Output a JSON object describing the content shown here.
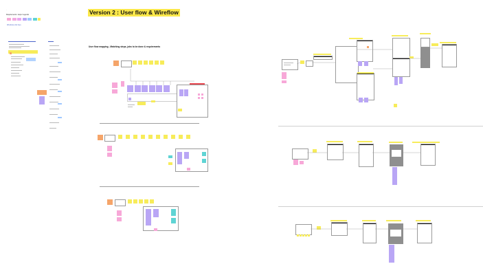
{
  "page_title": "Version 2 : User flow & Wireflow",
  "section_subtitle": "User flow mapping - Matching steps, jobs to be done & requirements",
  "legend": {
    "title": "Requirements / steps / legends",
    "link": "Wireframe link here",
    "swatches": [
      "#f7a8d8",
      "#f2a9e0",
      "#e9a7f0",
      "#b9a6f5",
      "#9fc8ff",
      "#5fd4d4",
      "#f7ec5a"
    ]
  },
  "colors": {
    "step": "#f7ec5a",
    "user": "#f5a56a",
    "note": "#f7a8d8",
    "screen": "#b9a6f5",
    "accent": "#5fd4d4",
    "alert": "#e8464f",
    "title_highlight": "#fbe84a",
    "link": "#4a63c9"
  }
}
